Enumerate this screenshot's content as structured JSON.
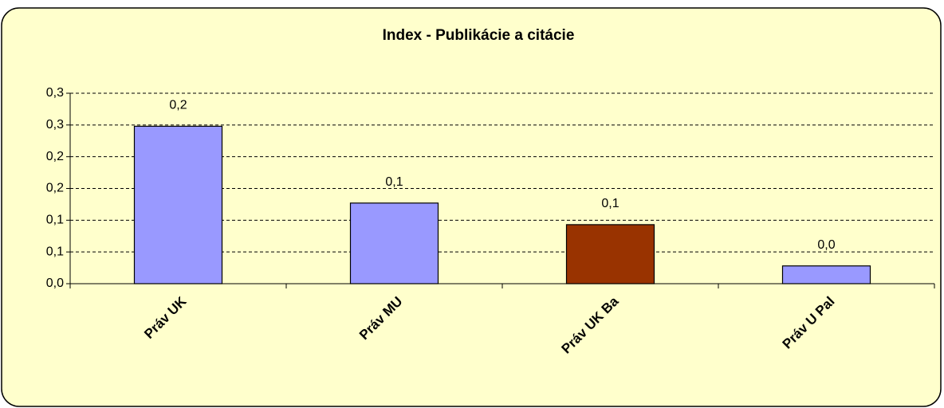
{
  "chart_data": {
    "type": "bar",
    "title": "Index - Publikácie a citácie",
    "categories": [
      "Práv UK",
      "Práv MU",
      "Práv UK Ba",
      "Práv U Pal"
    ],
    "values": [
      0.248,
      0.127,
      0.093,
      0.028
    ],
    "value_labels": [
      "0,2",
      "0,1",
      "0,1",
      "0,0"
    ],
    "colors": [
      "#9999ff",
      "#9999ff",
      "#993300",
      "#9999ff"
    ],
    "ylim": [
      0,
      0.3
    ],
    "yticks": [
      {
        "value": 0,
        "label": "0,0"
      },
      {
        "value": 0.05,
        "label": "0,1"
      },
      {
        "value": 0.1,
        "label": "0,1"
      },
      {
        "value": 0.15,
        "label": "0,2"
      },
      {
        "value": 0.2,
        "label": "0,2"
      },
      {
        "value": 0.25,
        "label": "0,3"
      },
      {
        "value": 0.3,
        "label": "0,3"
      }
    ],
    "grid": true
  }
}
